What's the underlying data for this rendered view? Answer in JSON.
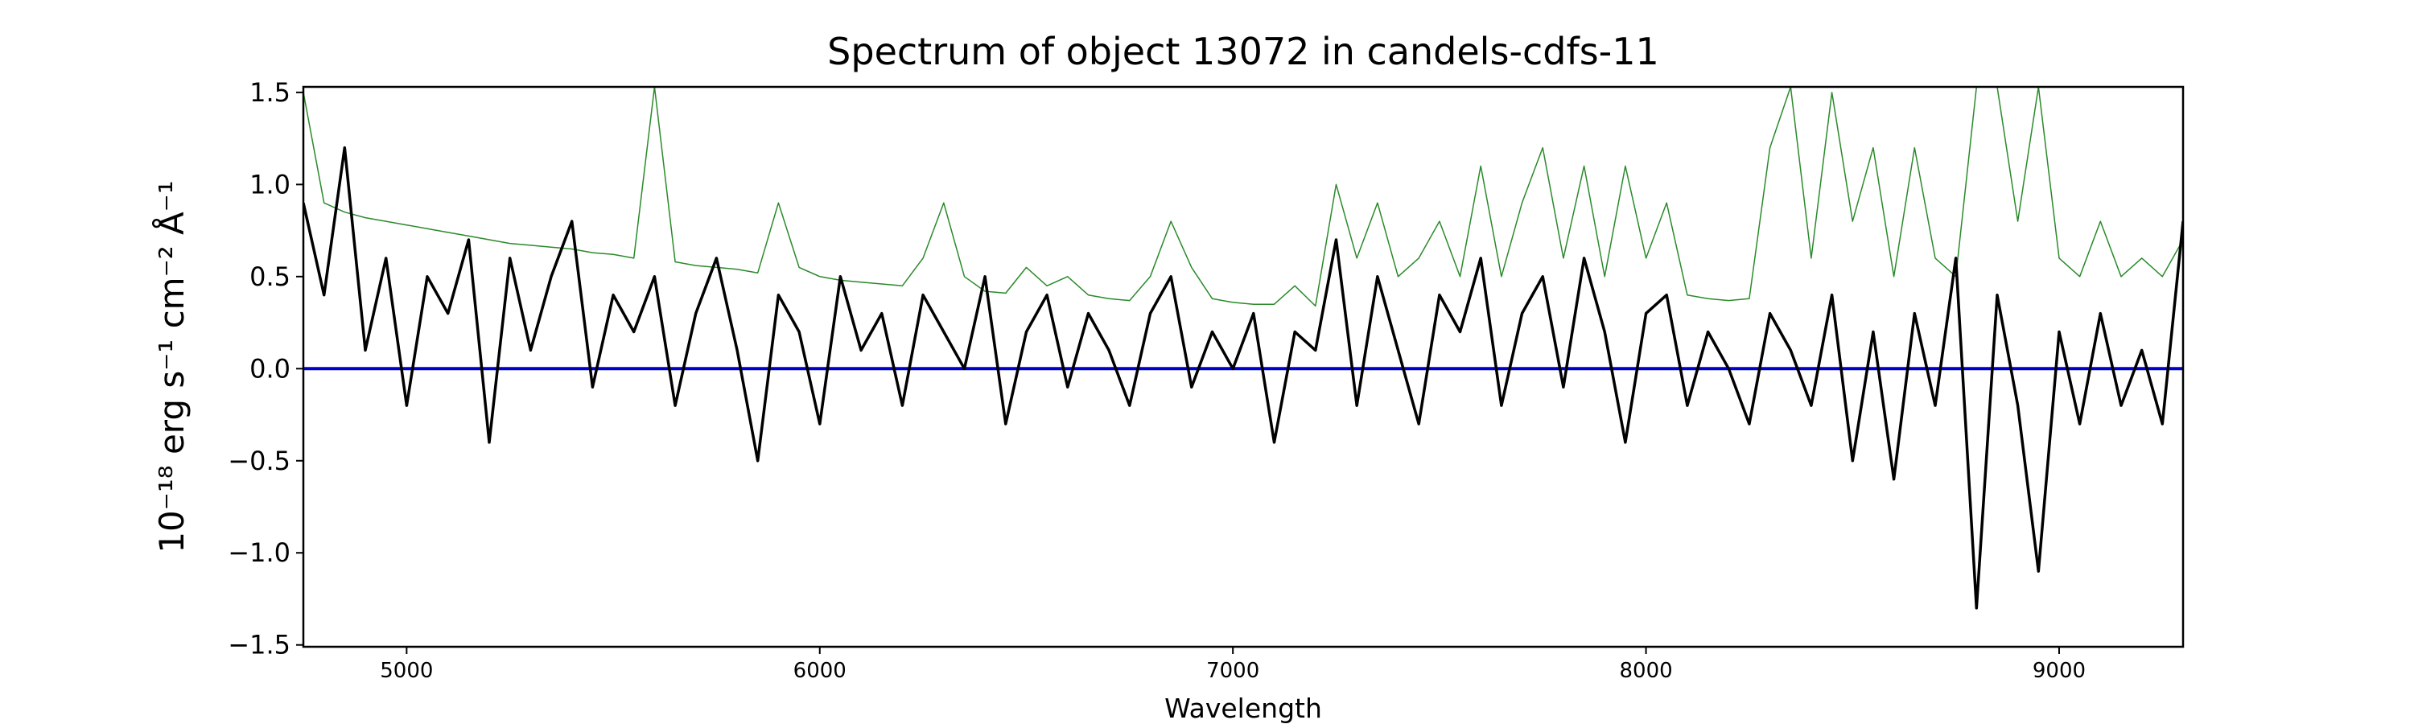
{
  "chart_data": {
    "type": "line",
    "title": "Spectrum of object 13072 in candels-cdfs-11",
    "x_label": "Wavelength",
    "y_label": "10⁻¹⁸ erg s⁻¹ cm⁻² Å⁻¹",
    "x": [
      4750,
      4800,
      4850,
      4900,
      4950,
      5000,
      5050,
      5100,
      5150,
      5200,
      5250,
      5300,
      5350,
      5400,
      5450,
      5500,
      5550,
      5600,
      5650,
      5700,
      5750,
      5800,
      5850,
      5900,
      5950,
      6000,
      6050,
      6100,
      6150,
      6200,
      6250,
      6300,
      6350,
      6400,
      6450,
      6500,
      6550,
      6600,
      6650,
      6700,
      6750,
      6800,
      6850,
      6900,
      6950,
      7000,
      7050,
      7100,
      7150,
      7200,
      7250,
      7300,
      7350,
      7400,
      7450,
      7500,
      7550,
      7600,
      7650,
      7700,
      7750,
      7800,
      7850,
      7900,
      7950,
      8000,
      8050,
      8100,
      8150,
      8200,
      8250,
      8300,
      8350,
      8400,
      8450,
      8500,
      8550,
      8600,
      8650,
      8700,
      8750,
      8800,
      8850,
      8900,
      8950,
      9000,
      9050,
      9100,
      9150,
      9200,
      9250,
      9300
    ],
    "series": [
      {
        "color": "#2a8a2a",
        "width": 1.5,
        "values": [
          1.5,
          0.9,
          0.85,
          0.82,
          0.8,
          0.78,
          0.76,
          0.74,
          0.72,
          0.7,
          0.68,
          0.67,
          0.66,
          0.65,
          0.63,
          0.62,
          0.6,
          1.53,
          0.58,
          0.56,
          0.55,
          0.54,
          0.52,
          0.9,
          0.55,
          0.5,
          0.48,
          0.47,
          0.46,
          0.45,
          0.6,
          0.9,
          0.5,
          0.42,
          0.41,
          0.55,
          0.45,
          0.5,
          0.4,
          0.38,
          0.37,
          0.5,
          0.8,
          0.55,
          0.38,
          0.36,
          0.35,
          0.35,
          0.45,
          0.34,
          1.0,
          0.6,
          0.9,
          0.5,
          0.6,
          0.8,
          0.5,
          1.1,
          0.5,
          0.9,
          1.2,
          0.6,
          1.1,
          0.5,
          1.1,
          0.6,
          0.9,
          0.4,
          0.38,
          0.37,
          0.38,
          1.2,
          1.53,
          0.6,
          1.5,
          0.8,
          1.2,
          0.5,
          1.2,
          0.6,
          0.5,
          1.53,
          1.53,
          0.8,
          1.53,
          0.6,
          0.5,
          0.8,
          0.5,
          0.6,
          0.5,
          0.7
        ]
      },
      {
        "color": "#0000cc",
        "width": 4,
        "values": [
          0,
          0,
          0,
          0,
          0,
          0,
          0,
          0,
          0,
          0,
          0,
          0,
          0,
          0,
          0,
          0,
          0,
          0,
          0,
          0,
          0,
          0,
          0,
          0,
          0,
          0,
          0,
          0,
          0,
          0,
          0,
          0,
          0,
          0,
          0,
          0,
          0,
          0,
          0,
          0,
          0,
          0,
          0,
          0,
          0,
          0,
          0,
          0,
          0,
          0,
          0,
          0,
          0,
          0,
          0,
          0,
          0,
          0,
          0,
          0,
          0,
          0,
          0,
          0,
          0,
          0,
          0,
          0,
          0,
          0,
          0,
          0,
          0,
          0,
          0,
          0,
          0,
          0,
          0,
          0,
          0,
          0,
          0,
          0,
          0,
          0,
          0,
          0,
          0,
          0,
          0,
          0
        ]
      },
      {
        "color": "#000000",
        "width": 3.5,
        "values": [
          0.9,
          0.4,
          1.2,
          0.1,
          0.6,
          -0.2,
          0.5,
          0.3,
          0.7,
          -0.4,
          0.6,
          0.1,
          0.5,
          0.8,
          -0.1,
          0.4,
          0.2,
          0.5,
          -0.2,
          0.3,
          0.6,
          0.1,
          -0.5,
          0.4,
          0.2,
          -0.3,
          0.5,
          0.1,
          0.3,
          -0.2,
          0.4,
          0.2,
          0.0,
          0.5,
          -0.3,
          0.2,
          0.4,
          -0.1,
          0.3,
          0.1,
          -0.2,
          0.3,
          0.5,
          -0.1,
          0.2,
          0.0,
          0.3,
          -0.4,
          0.2,
          0.1,
          0.7,
          -0.2,
          0.5,
          0.1,
          -0.3,
          0.4,
          0.2,
          0.6,
          -0.2,
          0.3,
          0.5,
          -0.1,
          0.6,
          0.2,
          -0.4,
          0.3,
          0.4,
          -0.2,
          0.2,
          0.0,
          -0.3,
          0.3,
          0.1,
          -0.2,
          0.4,
          -0.5,
          0.2,
          -0.6,
          0.3,
          -0.2,
          0.6,
          -1.3,
          0.4,
          -0.2,
          -1.1,
          0.2,
          -0.3,
          0.3,
          -0.2,
          0.1,
          -0.3,
          0.8
        ]
      }
    ],
    "xlim": [
      4750,
      9300
    ],
    "xticks": [
      5000,
      6000,
      7000,
      8000,
      9000
    ],
    "ylim": [
      -1.51,
      1.53
    ],
    "yticks": [
      {
        "value": -1.5,
        "label": "−1.5"
      },
      {
        "value": -1.0,
        "label": "−1.0"
      },
      {
        "value": -0.5,
        "label": "−0.5"
      },
      {
        "value": 0,
        "label": "0.0"
      },
      0.5,
      {
        "value": 1.0,
        "label": "1.0"
      },
      1.5
    ]
  }
}
